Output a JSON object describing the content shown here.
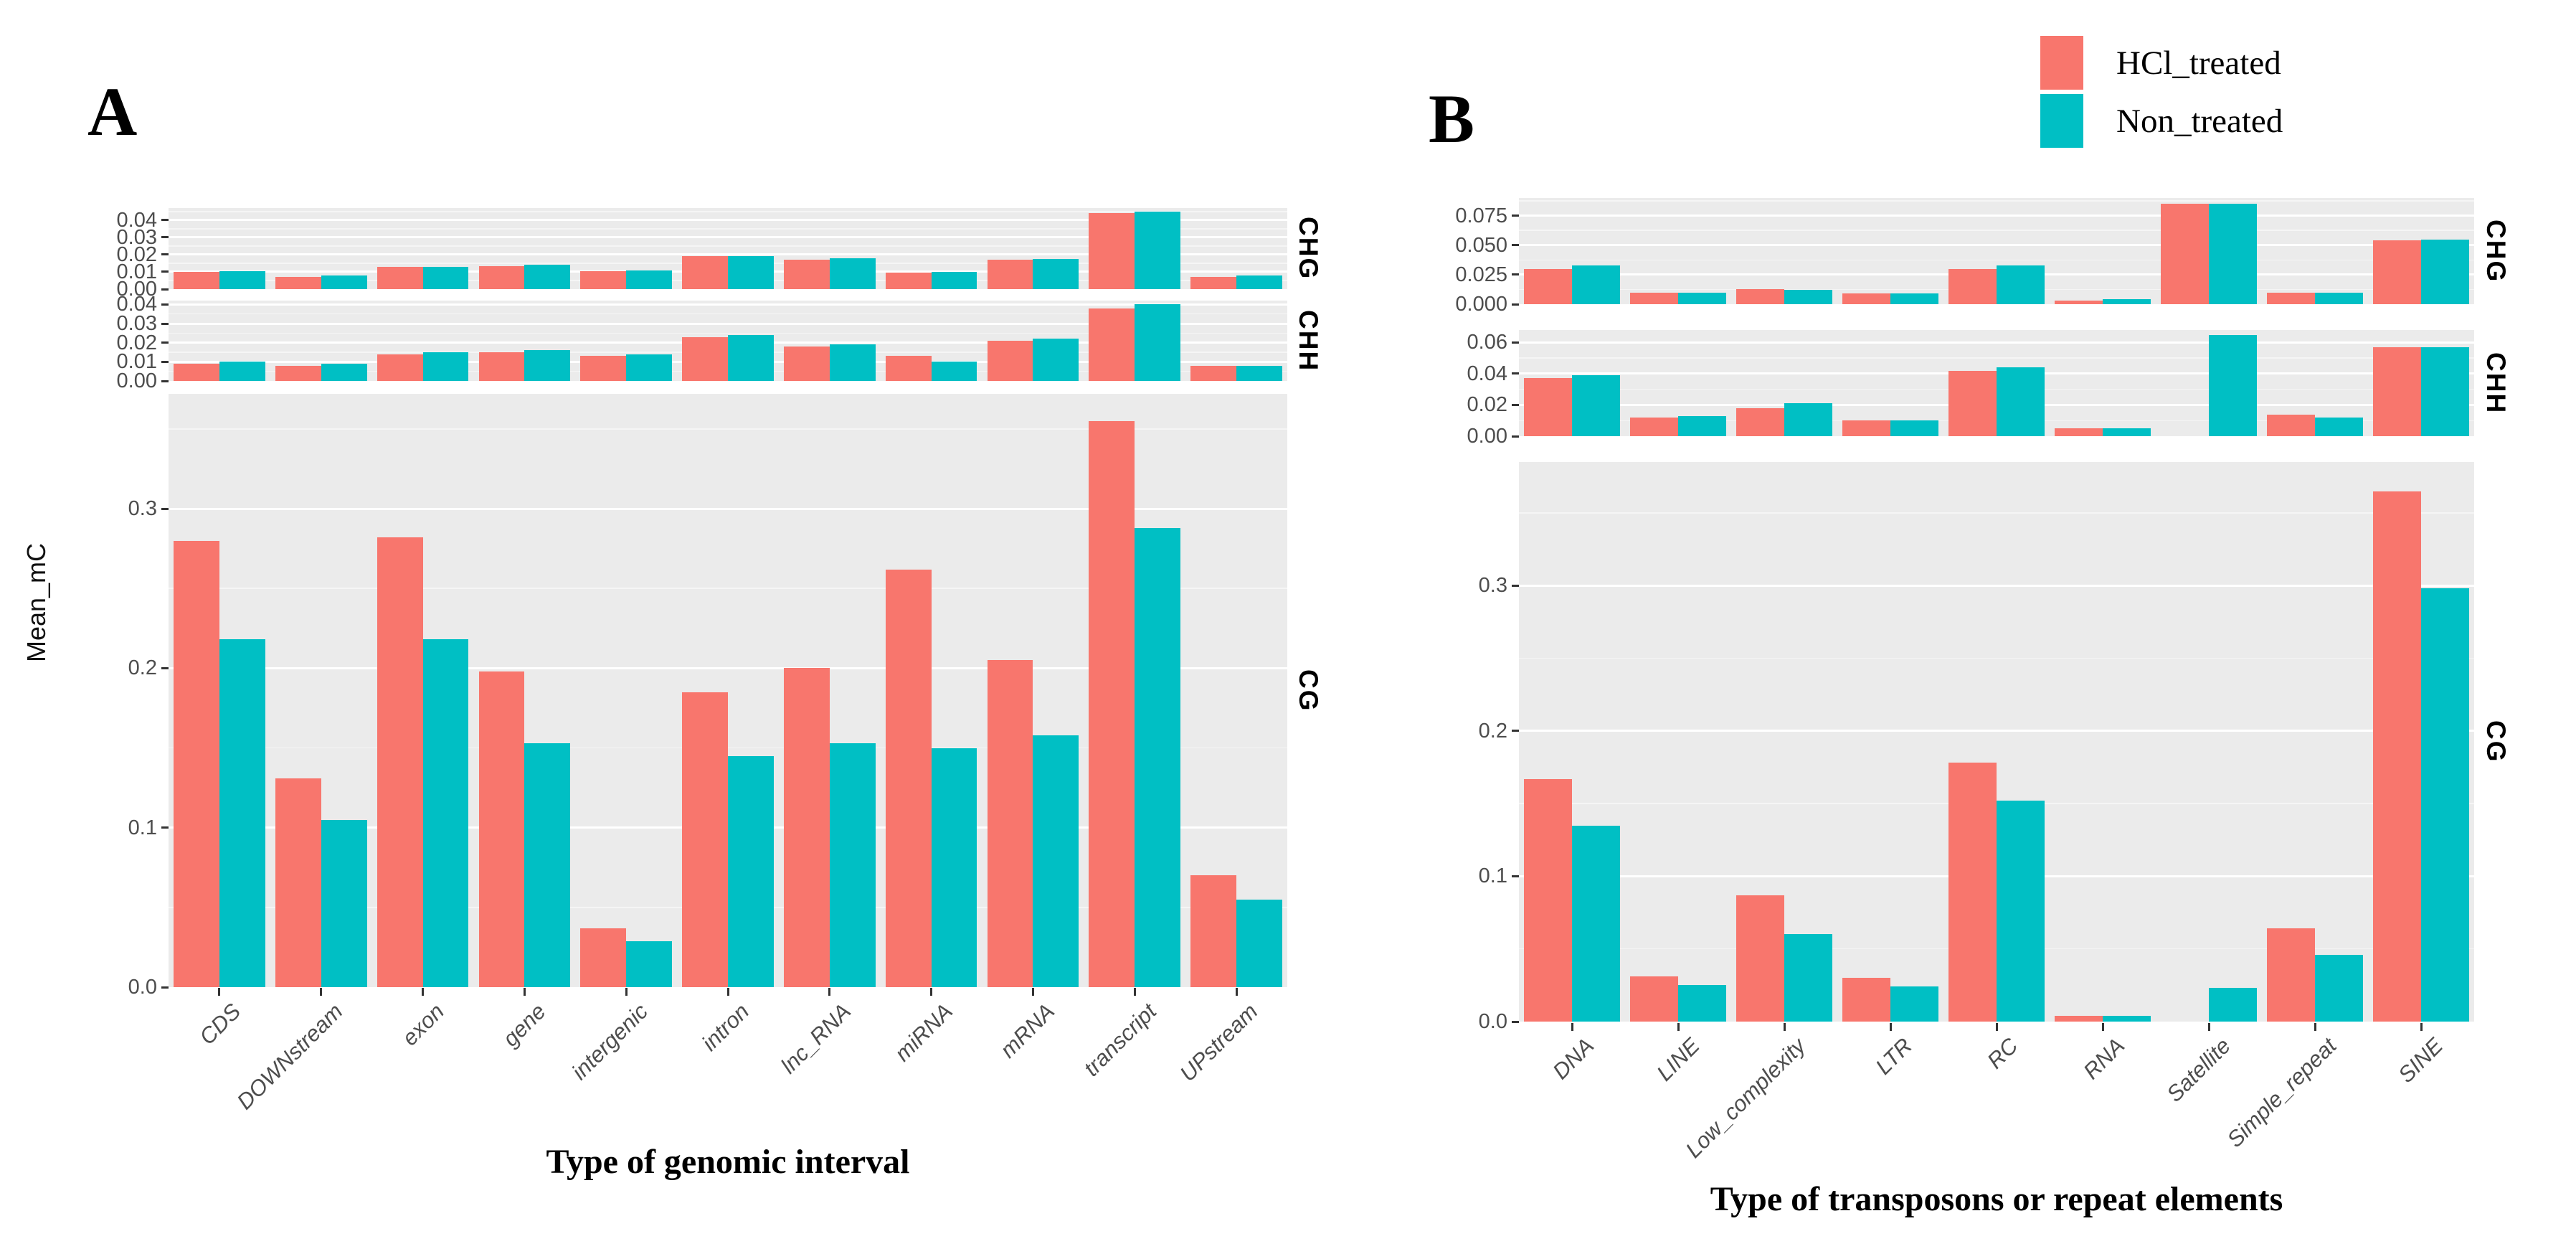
{
  "colors": {
    "hcl_treated": "#F8766D",
    "non_treated": "#00BFC4",
    "panel_background": "#EBEBEB",
    "tick_text": "#4D4D4D"
  },
  "legend": {
    "items": [
      {
        "label": "HCl_treated",
        "color": "#F8766D"
      },
      {
        "label": "Non_treated",
        "color": "#00BFC4"
      }
    ]
  },
  "chart_data": [
    {
      "type": "bar",
      "panel_label": "A",
      "xlabel": "Type of genomic interval",
      "ylabel": "Mean_mC",
      "legend_position": "top-right",
      "grid": true,
      "categories": [
        "CDS",
        "DOWNstream",
        "exon",
        "gene",
        "intergenic",
        "intron",
        "lnc_RNA",
        "miRNA",
        "mRNA",
        "transcript",
        "UPstream"
      ],
      "facets": [
        {
          "name": "CHG",
          "ylim": [
            0,
            0.047
          ],
          "yticks": [
            0.0,
            0.01,
            0.02,
            0.03,
            0.04
          ],
          "ytick_labels": [
            "0.00",
            "0.01",
            "0.02",
            "0.03",
            "0.04"
          ],
          "series": [
            {
              "name": "HCl_treated",
              "values": [
                0.01,
                0.007,
                0.013,
                0.0135,
                0.0105,
                0.019,
                0.017,
                0.0095,
                0.017,
                0.044,
                0.007
              ]
            },
            {
              "name": "Non_treated",
              "values": [
                0.0105,
                0.008,
                0.013,
                0.014,
                0.011,
                0.019,
                0.018,
                0.01,
                0.0175,
                0.045,
                0.008
              ]
            }
          ]
        },
        {
          "name": "CHH",
          "ylim": [
            0,
            0.042
          ],
          "yticks": [
            0.0,
            0.01,
            0.02,
            0.03,
            0.04
          ],
          "ytick_labels": [
            "0.00",
            "0.01",
            "0.02",
            "0.03",
            "0.04"
          ],
          "series": [
            {
              "name": "HCl_treated",
              "values": [
                0.009,
                0.008,
                0.014,
                0.015,
                0.013,
                0.023,
                0.018,
                0.013,
                0.021,
                0.038,
                0.008
              ]
            },
            {
              "name": "Non_treated",
              "values": [
                0.01,
                0.009,
                0.015,
                0.016,
                0.014,
                0.024,
                0.019,
                0.01,
                0.022,
                0.04,
                0.008
              ]
            }
          ]
        },
        {
          "name": "CG",
          "ylim": [
            0,
            0.372
          ],
          "yticks": [
            0.0,
            0.1,
            0.2,
            0.3
          ],
          "ytick_labels": [
            "0.0",
            "0.1",
            "0.2",
            "0.3"
          ],
          "series": [
            {
              "name": "HCl_treated",
              "values": [
                0.28,
                0.131,
                0.282,
                0.198,
                0.037,
                0.185,
                0.2,
                0.262,
                0.205,
                0.355,
                0.07
              ]
            },
            {
              "name": "Non_treated",
              "values": [
                0.218,
                0.105,
                0.218,
                0.153,
                0.029,
                0.145,
                0.153,
                0.15,
                0.158,
                0.288,
                0.055
              ]
            }
          ]
        }
      ]
    },
    {
      "type": "bar",
      "panel_label": "B",
      "xlabel": "Type of transposons or repeat elements",
      "ylabel": "",
      "legend_position": "top-right",
      "grid": true,
      "categories": [
        "DNA",
        "LINE",
        "Low_complexity",
        "LTR",
        "RC",
        "RNA",
        "Satellite",
        "Simple_repeat",
        "SINE"
      ],
      "facets": [
        {
          "name": "CHG",
          "ylim": [
            0,
            0.09
          ],
          "yticks": [
            0.0,
            0.025,
            0.05,
            0.075
          ],
          "ytick_labels": [
            "0.000",
            "0.025",
            "0.050",
            "0.075"
          ],
          "series": [
            {
              "name": "HCl_treated",
              "values": [
                0.03,
                0.01,
                0.013,
                0.009,
                0.03,
                0.003,
                0.085,
                0.01,
                0.054
              ]
            },
            {
              "name": "Non_treated",
              "values": [
                0.033,
                0.01,
                0.012,
                0.009,
                0.033,
                0.004,
                0.085,
                0.01,
                0.055
              ]
            }
          ]
        },
        {
          "name": "CHH",
          "ylim": [
            0,
            0.068
          ],
          "yticks": [
            0.0,
            0.02,
            0.04,
            0.06
          ],
          "ytick_labels": [
            "0.00",
            "0.02",
            "0.04",
            "0.06"
          ],
          "series": [
            {
              "name": "HCl_treated",
              "values": [
                0.037,
                0.012,
                0.018,
                0.01,
                0.042,
                0.005,
                null,
                0.014,
                0.057
              ]
            },
            {
              "name": "Non_treated",
              "values": [
                0.039,
                0.013,
                0.021,
                0.01,
                0.044,
                0.005,
                0.065,
                0.012,
                0.057
              ]
            }
          ]
        },
        {
          "name": "CG",
          "ylim": [
            0,
            0.385
          ],
          "yticks": [
            0.0,
            0.1,
            0.2,
            0.3
          ],
          "ytick_labels": [
            "0.0",
            "0.1",
            "0.2",
            "0.3"
          ],
          "series": [
            {
              "name": "HCl_treated",
              "values": [
                0.167,
                0.031,
                0.087,
                0.03,
                0.178,
                0.004,
                null,
                0.064,
                0.365
              ]
            },
            {
              "name": "Non_treated",
              "values": [
                0.135,
                0.025,
                0.06,
                0.024,
                0.152,
                0.004,
                0.023,
                0.046,
                0.298
              ]
            }
          ]
        }
      ]
    }
  ]
}
